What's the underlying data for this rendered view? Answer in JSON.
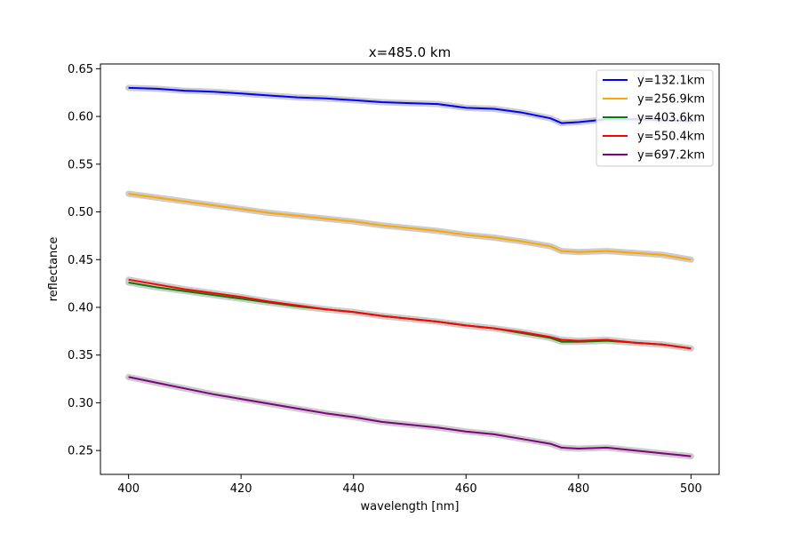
{
  "chart_data": {
    "type": "line",
    "title": "x=485.0 km",
    "xlabel": "wavelength [nm]",
    "ylabel": "reflectance",
    "xlim": [
      395,
      505
    ],
    "ylim": [
      0.225,
      0.655
    ],
    "xticks": [
      400,
      420,
      440,
      460,
      480,
      500
    ],
    "xtick_labels": [
      "400",
      "420",
      "440",
      "460",
      "480",
      "500"
    ],
    "yticks": [
      0.25,
      0.3,
      0.35,
      0.4,
      0.45,
      0.5,
      0.55,
      0.6,
      0.65
    ],
    "ytick_labels": [
      "0.25",
      "0.30",
      "0.35",
      "0.40",
      "0.45",
      "0.50",
      "0.55",
      "0.60",
      "0.65"
    ],
    "grid": false,
    "legend_position": "top-right",
    "uncertainty_band_color": "#cccccc",
    "x": [
      400,
      405,
      410,
      415,
      420,
      425,
      430,
      435,
      440,
      445,
      450,
      455,
      460,
      465,
      470,
      475,
      477,
      480,
      485,
      490,
      495,
      500
    ],
    "series": [
      {
        "name": "y=132.1km",
        "color": "#0000ff",
        "values": [
          0.63,
          0.629,
          0.627,
          0.626,
          0.624,
          0.622,
          0.62,
          0.619,
          0.617,
          0.615,
          0.614,
          0.613,
          0.609,
          0.608,
          0.604,
          0.598,
          0.593,
          0.594,
          0.597,
          0.597,
          0.596,
          0.595
        ]
      },
      {
        "name": "y=256.9km",
        "color": "#ffa500",
        "values": [
          0.519,
          0.515,
          0.511,
          0.507,
          0.503,
          0.499,
          0.496,
          0.493,
          0.49,
          0.486,
          0.483,
          0.48,
          0.476,
          0.473,
          0.469,
          0.464,
          0.459,
          0.458,
          0.459,
          0.457,
          0.455,
          0.45
        ]
      },
      {
        "name": "y=403.6km",
        "color": "#008000",
        "values": [
          0.426,
          0.421,
          0.417,
          0.413,
          0.409,
          0.405,
          0.401,
          0.398,
          0.395,
          0.391,
          0.388,
          0.385,
          0.381,
          0.378,
          0.373,
          0.368,
          0.364,
          0.364,
          0.365,
          0.363,
          0.361,
          0.357
        ]
      },
      {
        "name": "y=550.4km",
        "color": "#ff0000",
        "values": [
          0.429,
          0.424,
          0.419,
          0.415,
          0.411,
          0.406,
          0.402,
          0.398,
          0.395,
          0.391,
          0.388,
          0.385,
          0.381,
          0.378,
          0.374,
          0.369,
          0.366,
          0.365,
          0.366,
          0.363,
          0.361,
          0.357
        ]
      },
      {
        "name": "y=697.2km",
        "color": "#800080",
        "values": [
          0.327,
          0.321,
          0.315,
          0.309,
          0.304,
          0.299,
          0.294,
          0.289,
          0.285,
          0.28,
          0.277,
          0.274,
          0.27,
          0.267,
          0.262,
          0.257,
          0.253,
          0.252,
          0.253,
          0.25,
          0.247,
          0.244
        ]
      }
    ]
  }
}
